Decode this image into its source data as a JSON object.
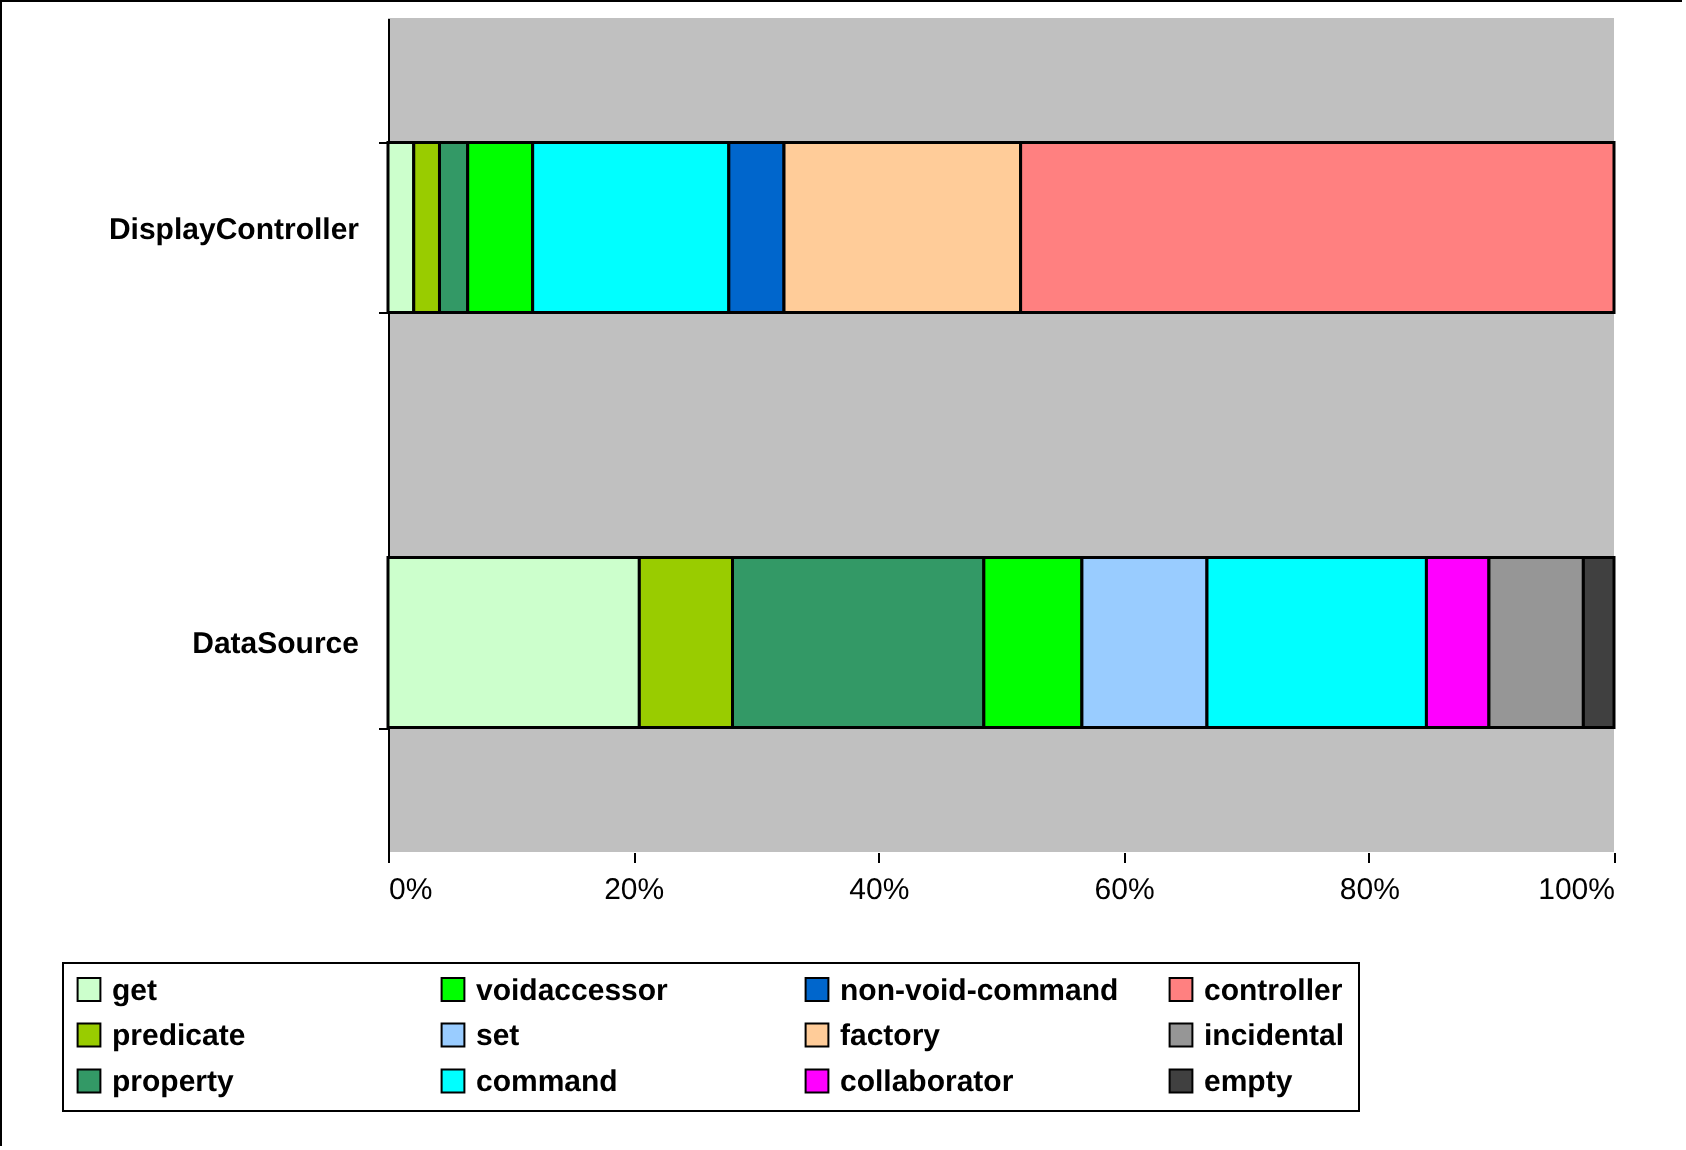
{
  "chart_data": {
    "type": "bar",
    "orientation": "horizontal",
    "stacked": true,
    "categories": [
      "DisplayController",
      "DataSource"
    ],
    "series": [
      {
        "name": "get",
        "color": "#ccffcc",
        "values": [
          2.1,
          20.5
        ]
      },
      {
        "name": "predicate",
        "color": "#99cc00",
        "values": [
          2.1,
          7.6
        ]
      },
      {
        "name": "property",
        "color": "#339966",
        "values": [
          2.3,
          20.5
        ]
      },
      {
        "name": "voidaccessor",
        "color": "#00ff00",
        "values": [
          5.3,
          8.0
        ]
      },
      {
        "name": "set",
        "color": "#99ccff",
        "values": [
          null,
          10.2
        ]
      },
      {
        "name": "command",
        "color": "#00ffff",
        "values": [
          16.0,
          17.9
        ]
      },
      {
        "name": "non-void-command",
        "color": "#0066cc",
        "values": [
          4.5,
          null
        ]
      },
      {
        "name": "factory",
        "color": "#ffcc99",
        "values": [
          19.3,
          null
        ]
      },
      {
        "name": "collaborator",
        "color": "#ff00ff",
        "values": [
          null,
          5.1
        ]
      },
      {
        "name": "controller",
        "color": "#ff8080",
        "values": [
          48.4,
          null
        ]
      },
      {
        "name": "incidental",
        "color": "#969696",
        "values": [
          null,
          7.7
        ]
      },
      {
        "name": "empty",
        "color": "#404040",
        "values": [
          null,
          2.5
        ]
      }
    ],
    "xlim": [
      0,
      100
    ],
    "xticks": [
      {
        "value": 0,
        "label": "0%"
      },
      {
        "value": 20,
        "label": "20%"
      },
      {
        "value": 40,
        "label": "40%"
      },
      {
        "value": 60,
        "label": "60%"
      },
      {
        "value": 80,
        "label": "80%"
      },
      {
        "value": 100,
        "label": "100%"
      }
    ],
    "grid": false,
    "legend": "bottom"
  }
}
